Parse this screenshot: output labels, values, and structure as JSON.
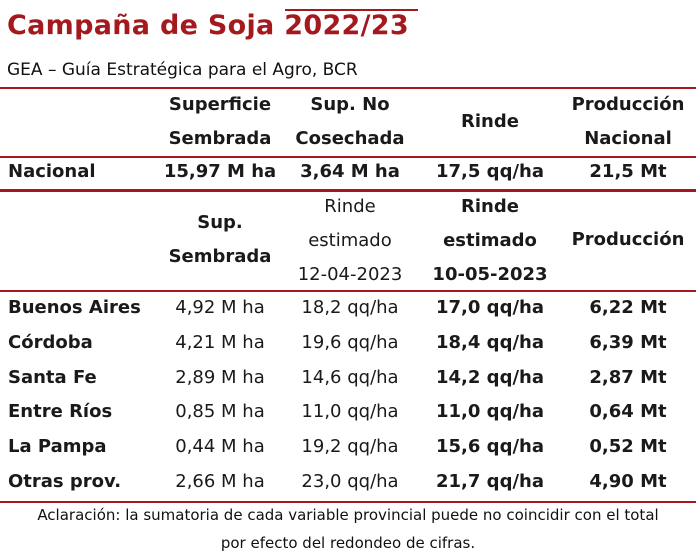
{
  "title": "Campaña de Soja 2022/23",
  "subtitle": "GEA – Guía Estratégica para el Agro, BCR",
  "national_header": {
    "col1": [
      "Superficie",
      "Sembrada"
    ],
    "col2": [
      "Sup. No",
      "Cosechada"
    ],
    "col3": "Rinde",
    "col4": [
      "Producción",
      "Nacional"
    ]
  },
  "national_row": {
    "label": "Nacional",
    "superficie": "15,97 M ha",
    "sup_no_cosechada": "3,64 M ha",
    "rinde": "17,5 qq/ha",
    "produccion": "21,5 Mt"
  },
  "provincial_header": {
    "col1": [
      "Sup.",
      "Sembrada"
    ],
    "col2": [
      "Rinde",
      "estimado",
      "12-04-2023"
    ],
    "col3": [
      "Rinde",
      "estimado",
      "10-05-2023"
    ],
    "col4": "Producción"
  },
  "provinces": [
    {
      "name": "Buenos Aires",
      "sup": "4,92 M ha",
      "rinde_prev": "18,2 qq/ha",
      "rinde_new": "17,0 qq/ha",
      "produccion": "6,22 Mt"
    },
    {
      "name": "Córdoba",
      "sup": "4,21 M ha",
      "rinde_prev": "19,6 qq/ha",
      "rinde_new": "18,4 qq/ha",
      "produccion": "6,39 Mt"
    },
    {
      "name": "Santa Fe",
      "sup": "2,89 M ha",
      "rinde_prev": "14,6 qq/ha",
      "rinde_new": "14,2 qq/ha",
      "produccion": "2,87 Mt"
    },
    {
      "name": "Entre Ríos",
      "sup": "0,85 M ha",
      "rinde_prev": "11,0 qq/ha",
      "rinde_new": "11,0 qq/ha",
      "produccion": "0,64 Mt"
    },
    {
      "name": "La Pampa",
      "sup": "0,44 M ha",
      "rinde_prev": "19,2 qq/ha",
      "rinde_new": "15,6 qq/ha",
      "produccion": "0,52 Mt"
    },
    {
      "name": "Otras prov.",
      "sup": "2,66 M ha",
      "rinde_prev": "23,0 qq/ha",
      "rinde_new": "21,7 qq/ha",
      "produccion": "4,90 Mt"
    }
  ],
  "note": [
    "Aclaración: la sumatoria de cada variable provincial puede no coincidir con el total",
    "por efecto del redondeo de cifras."
  ],
  "colors": {
    "accent": "#a3191e"
  }
}
